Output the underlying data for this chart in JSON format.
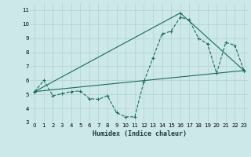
{
  "xlabel": "Humidex (Indice chaleur)",
  "background_color": "#cce8e8",
  "grid_color": "#b8d8d8",
  "line_color": "#1a6b5a",
  "xlim": [
    -0.5,
    23.5
  ],
  "ylim": [
    3,
    11.5
  ],
  "xticks": [
    0,
    1,
    2,
    3,
    4,
    5,
    6,
    7,
    8,
    9,
    10,
    11,
    12,
    13,
    14,
    15,
    16,
    17,
    18,
    19,
    20,
    21,
    22,
    23
  ],
  "yticks": [
    3,
    4,
    5,
    6,
    7,
    8,
    9,
    10,
    11
  ],
  "series1_x": [
    0,
    1,
    2,
    3,
    4,
    5,
    6,
    7,
    8,
    9,
    10,
    11,
    12,
    13,
    14,
    15,
    16,
    17,
    18,
    19,
    20,
    21,
    22,
    23
  ],
  "series1_y": [
    5.2,
    6.0,
    4.9,
    5.05,
    5.2,
    5.25,
    4.7,
    4.65,
    4.9,
    3.7,
    3.4,
    3.4,
    5.9,
    7.6,
    9.3,
    9.5,
    10.5,
    10.3,
    9.0,
    8.6,
    6.5,
    8.7,
    8.5,
    6.7
  ],
  "series2_x": [
    0,
    23
  ],
  "series2_y": [
    5.2,
    6.7
  ],
  "series3_x": [
    0,
    16,
    23
  ],
  "series3_y": [
    5.2,
    10.8,
    6.7
  ]
}
